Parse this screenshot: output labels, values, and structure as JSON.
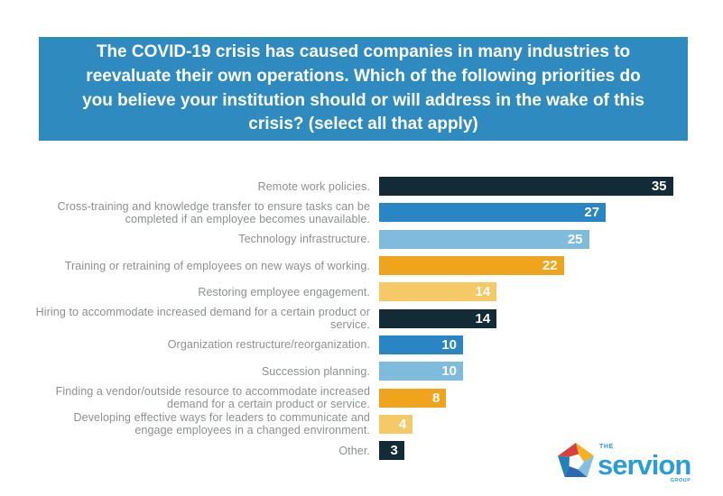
{
  "header": {
    "title": "The COVID-19 crisis has caused companies in many industries to reevaluate their own operations. Which of the following priorities do you believe your institution should or will address in the wake of this crisis? (select all that apply)",
    "background_color": "#2E8ABF",
    "text_color": "#FFFFFF"
  },
  "chart_data": {
    "type": "bar",
    "orientation": "horizontal",
    "title": "The COVID-19 crisis has caused companies in many industries to reevaluate their own operations. Which of the following priorities do you believe your institution should or will address in the wake of this crisis? (select all that apply)",
    "categories": [
      "Remote work policies.",
      "Cross-training and knowledge transfer to ensure tasks can be completed if an employee becomes unavailable.",
      "Technology infrastructure.",
      "Training or retraining of employees on new ways of working.",
      "Restoring employee engagement.",
      "Hiring to accommodate increased demand for a certain product or service.",
      "Organization restructure/reorganization.",
      "Succession planning.",
      "Finding a vendor/outside resource to accommodate increased demand for a certain product or service.",
      "Developing effective ways for leaders to communicate and engage employees in a changed environment.",
      "Other."
    ],
    "values": [
      35,
      27,
      25,
      22,
      14,
      14,
      10,
      10,
      8,
      4,
      3
    ],
    "bar_color_keys": [
      "navy",
      "blue",
      "lightblue",
      "amber",
      "lightamber",
      "navy",
      "blue",
      "lightblue",
      "amber",
      "lightamber",
      "navy"
    ],
    "palette": {
      "navy": "#122B36",
      "blue": "#2A85C4",
      "lightblue": "#7FBBDD",
      "amber": "#F0A41E",
      "lightamber": "#F6C967"
    },
    "value_label_color": "#FFFFFF",
    "label_color": "#8C8F91",
    "xlim": [
      0,
      35
    ],
    "grid": false,
    "legend": false
  },
  "logo": {
    "the": "THE",
    "name": "servion",
    "group": "GROUP",
    "text_color": "#2B9CD4",
    "icon": "pentagon-pinwheel-icon",
    "icon_colors": {
      "top_left": "#D8403E",
      "top_right": "#F4B223",
      "right": "#7FC0E3",
      "bottom": "#2C67B1",
      "left": "#2380B8"
    }
  }
}
